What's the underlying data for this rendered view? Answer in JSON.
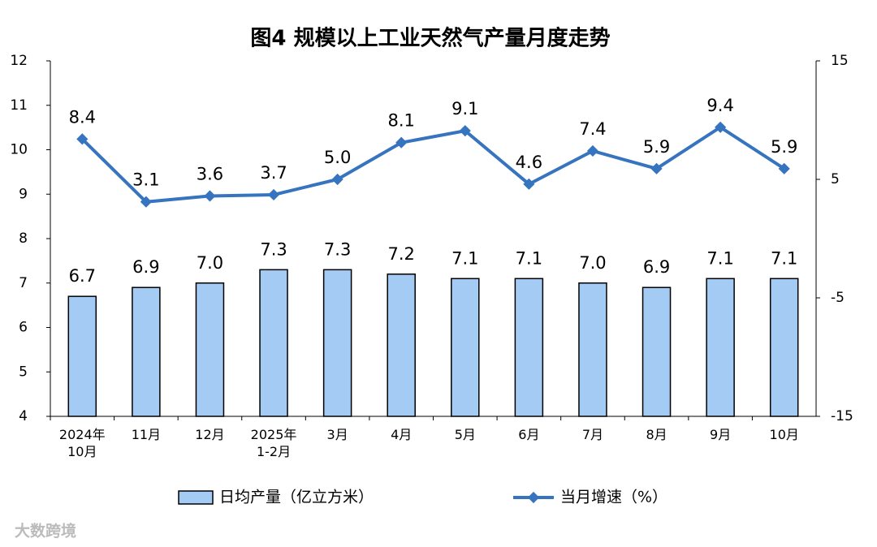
{
  "chart_data": {
    "type": "bar_line",
    "title": "图4  规模以上工业天然气产量月度走势",
    "categories": [
      "2024年\n10月",
      "11月",
      "12月",
      "2025年\n1-2月",
      "3月",
      "4月",
      "5月",
      "6月",
      "7月",
      "8月",
      "9月",
      "10月"
    ],
    "series": [
      {
        "name": "日均产量（亿立方米）",
        "type": "bar",
        "color": "#a3cbf3",
        "values": [
          6.7,
          6.9,
          7.0,
          7.3,
          7.3,
          7.2,
          7.1,
          7.1,
          7.0,
          6.9,
          7.1,
          7.1
        ],
        "value_labels": [
          "6.7",
          "6.9",
          "7.0",
          "7.3",
          "7.3",
          "7.2",
          "7.1",
          "7.1",
          "7.0",
          "6.9",
          "7.1",
          "7.1"
        ]
      },
      {
        "name": "当月增速（%）",
        "type": "line",
        "axis": "y2",
        "color": "#3674c0",
        "values": [
          8.4,
          3.1,
          3.6,
          3.7,
          5.0,
          8.1,
          9.1,
          4.6,
          7.4,
          5.9,
          9.4,
          5.9
        ],
        "value_labels": [
          "8.4",
          "3.1",
          "3.6",
          "3.7",
          "5.0",
          "8.1",
          "9.1",
          "4.6",
          "7.4",
          "5.9",
          "9.4",
          "5.9"
        ]
      }
    ],
    "ylim": [
      4,
      12
    ],
    "yticks": [
      4,
      5,
      6,
      7,
      8,
      9,
      10,
      11,
      12
    ],
    "y2lim": [
      -15,
      15
    ],
    "y2ticks": [
      -15,
      -5,
      5,
      15
    ],
    "grid": false,
    "legend": "bottom",
    "watermark": "大数跨境"
  }
}
